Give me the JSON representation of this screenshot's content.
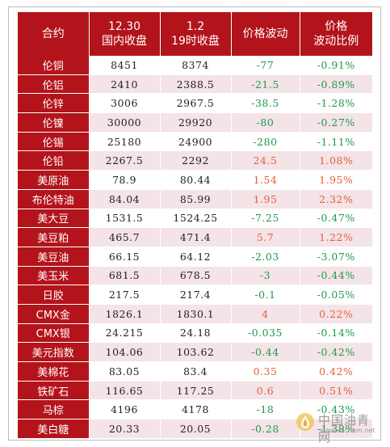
{
  "header": {
    "col_name": "合约",
    "col_close_prev": [
      "12.30",
      "国内收盘"
    ],
    "col_close_now": [
      "1.2",
      "19时收盘"
    ],
    "col_change": "价格波动",
    "col_change_pct": [
      "价格",
      "波动比例"
    ]
  },
  "colors": {
    "header_red": "#b3141b",
    "row_stripe": "#f4e3e7",
    "down_green": "#1d9a4d",
    "up_orange": "#e4603a"
  },
  "rows": [
    {
      "name": "伦铜",
      "prev": "8451",
      "now": "8374",
      "change": "-77",
      "pct": "-0.91%",
      "dir": "down"
    },
    {
      "name": "伦铝",
      "prev": "2410",
      "now": "2388.5",
      "change": "-21.5",
      "pct": "-0.89%",
      "dir": "down"
    },
    {
      "name": "伦锌",
      "prev": "3006",
      "now": "2967.5",
      "change": "-38.5",
      "pct": "-1.28%",
      "dir": "down"
    },
    {
      "name": "伦镍",
      "prev": "30000",
      "now": "29920",
      "change": "-80",
      "pct": "-0.27%",
      "dir": "down"
    },
    {
      "name": "伦锡",
      "prev": "25180",
      "now": "24900",
      "change": "-280",
      "pct": "-1.11%",
      "dir": "down"
    },
    {
      "name": "伦铅",
      "prev": "2267.5",
      "now": "2292",
      "change": "24.5",
      "pct": "1.08%",
      "dir": "up"
    },
    {
      "name": "美原油",
      "prev": "78.9",
      "now": "80.44",
      "change": "1.54",
      "pct": "1.95%",
      "dir": "up"
    },
    {
      "name": "布伦特油",
      "prev": "84.04",
      "now": "85.99",
      "change": "1.95",
      "pct": "2.32%",
      "dir": "up"
    },
    {
      "name": "美大豆",
      "prev": "1531.5",
      "now": "1524.25",
      "change": "-7.25",
      "pct": "-0.47%",
      "dir": "down"
    },
    {
      "name": "美豆粕",
      "prev": "465.7",
      "now": "471.4",
      "change": "5.7",
      "pct": "1.22%",
      "dir": "up"
    },
    {
      "name": "美豆油",
      "prev": "66.15",
      "now": "64.12",
      "change": "-2.03",
      "pct": "-3.07%",
      "dir": "down"
    },
    {
      "name": "美玉米",
      "prev": "681.5",
      "now": "678.5",
      "change": "-3",
      "pct": "-0.44%",
      "dir": "down"
    },
    {
      "name": "日胶",
      "prev": "217.5",
      "now": "217.4",
      "change": "-0.1",
      "pct": "-0.05%",
      "dir": "down"
    },
    {
      "name": "CMX金",
      "prev": "1826.1",
      "now": "1830.1",
      "change": "4",
      "pct": "0.22%",
      "dir": "up"
    },
    {
      "name": "CMX银",
      "prev": "24.215",
      "now": "24.18",
      "change": "-0.035",
      "pct": "-0.14%",
      "dir": "down"
    },
    {
      "name": "美元指数",
      "prev": "104.06",
      "now": "103.62",
      "change": "-0.44",
      "pct": "-0.42%",
      "dir": "down"
    },
    {
      "name": "美棉花",
      "prev": "83.05",
      "now": "83.4",
      "change": "0.35",
      "pct": "0.42%",
      "dir": "up"
    },
    {
      "name": "铁矿石",
      "prev": "116.65",
      "now": "117.25",
      "change": "0.6",
      "pct": "0.51%",
      "dir": "up"
    },
    {
      "name": "马棕",
      "prev": "4196",
      "now": "4178",
      "change": "-18",
      "pct": "-0.43%",
      "dir": "down"
    },
    {
      "name": "美白糖",
      "prev": "20.33",
      "now": "20.05",
      "change": "-0.28",
      "pct": "-1.38%",
      "dir": "down"
    }
  ],
  "watermark": {
    "brand": "中国油青网",
    "url": "www.oilchem.net",
    "icon": "oil-drop-logo-icon"
  }
}
